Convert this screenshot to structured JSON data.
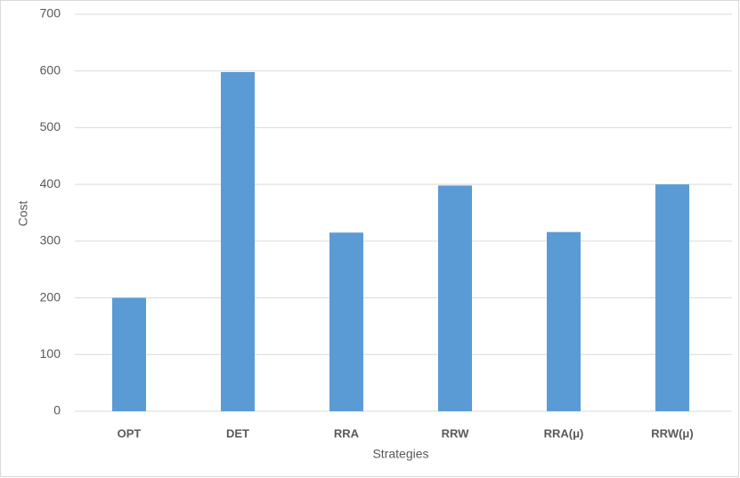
{
  "chart_data": {
    "type": "bar",
    "x_label": "Strategies",
    "y_label": "Cost",
    "categories": [
      "OPT",
      "DET",
      "RRA",
      "RRW",
      "RRA(μ)",
      "RRW(μ)"
    ],
    "values": [
      200,
      598,
      315,
      398,
      316,
      400
    ],
    "color": "#5b9bd5",
    "ylim": [
      0,
      700
    ],
    "yticks": [
      0,
      100,
      200,
      300,
      400,
      500,
      600,
      700
    ],
    "grid": true
  }
}
